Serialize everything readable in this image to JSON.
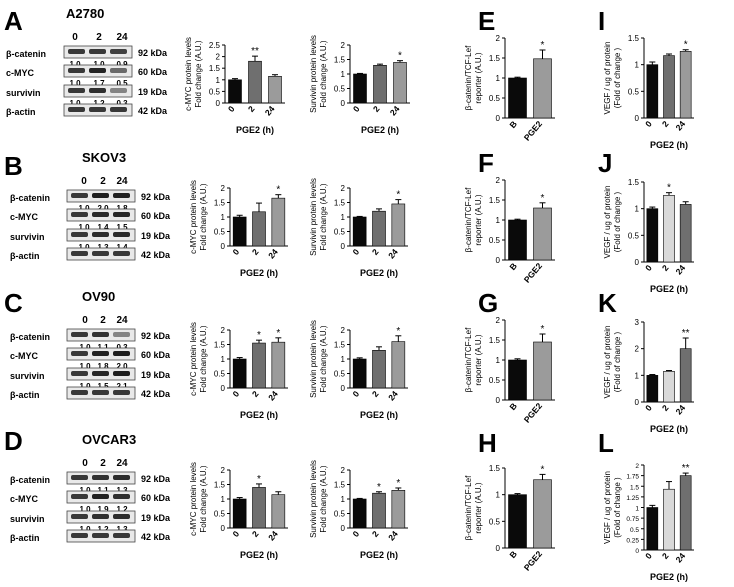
{
  "colors": {
    "black": "#0a0a0a",
    "dark_gray": "#6f6f6f",
    "gray": "#9b9b9b",
    "light_gray": "#d9d9d9"
  },
  "panel_letters": [
    "A",
    "B",
    "C",
    "D",
    "E",
    "F",
    "G",
    "H",
    "I",
    "J",
    "K",
    "L"
  ],
  "blots": [
    {
      "cell_line": "A2780",
      "lanes": [
        "0",
        "2",
        "24"
      ],
      "rows": [
        {
          "name": "β-catenin",
          "kda": "92 kDa",
          "values": [
            "1.0",
            "1.0",
            "0.9"
          ]
        },
        {
          "name": "c-MYC",
          "kda": "60 kDa",
          "values": [
            "1.0",
            "1.7",
            "0.5"
          ]
        },
        {
          "name": "survivin",
          "kda": "19 kDa",
          "values": [
            "1.0",
            "1.2",
            "0.3"
          ]
        },
        {
          "name": "β-actin",
          "kda": "42 kDa",
          "values": []
        }
      ]
    },
    {
      "cell_line": "SKOV3",
      "lanes": [
        "0",
        "2",
        "24"
      ],
      "rows": [
        {
          "name": "β-catenin",
          "kda": "92 kDa",
          "values": [
            "1.0",
            "2.0",
            "1.8"
          ]
        },
        {
          "name": "c-MYC",
          "kda": "60 kDa",
          "values": [
            "1.0",
            "1.4",
            "1.5"
          ]
        },
        {
          "name": "survivin",
          "kda": "19 kDa",
          "values": [
            "1.0",
            "1.3",
            "1.4"
          ]
        },
        {
          "name": "β-actin",
          "kda": "42 kDa",
          "values": []
        }
      ]
    },
    {
      "cell_line": "OV90",
      "lanes": [
        "0",
        "2",
        "24"
      ],
      "rows": [
        {
          "name": "β-catenin",
          "kda": "92 kDa",
          "values": [
            "1.0",
            "1.1",
            "0.3"
          ]
        },
        {
          "name": "c-MYC",
          "kda": "60 kDa",
          "values": [
            "1.0",
            "1.8",
            "2.0"
          ]
        },
        {
          "name": "survivin",
          "kda": "19 kDa",
          "values": [
            "1.0",
            "1.5",
            "2.1"
          ]
        },
        {
          "name": "β-actin",
          "kda": "42 kDa",
          "values": []
        }
      ]
    },
    {
      "cell_line": "OVCAR3",
      "lanes": [
        "0",
        "2",
        "24"
      ],
      "rows": [
        {
          "name": "β-catenin",
          "kda": "92 kDa",
          "values": [
            "1.0",
            "1.1",
            "1.3"
          ]
        },
        {
          "name": "c-MYC",
          "kda": "60 kDa",
          "values": [
            "1.0",
            "1.9",
            "1.2"
          ]
        },
        {
          "name": "survivin",
          "kda": "19 kDa",
          "values": [
            "1.0",
            "1.2",
            "1.3"
          ]
        },
        {
          "name": "β-actin",
          "kda": "42 kDa",
          "values": []
        }
      ]
    }
  ],
  "chart_data": [
    {
      "id": "A-cmyc",
      "type": "bar",
      "ylabel": [
        "c-MYC protein levels",
        "Fold change (A.U.)"
      ],
      "xlabel": "PGE2 (h)",
      "categories": [
        "0",
        "2",
        "24"
      ],
      "values": [
        1.0,
        1.8,
        1.15
      ],
      "errors": [
        0.05,
        0.22,
        0.07
      ],
      "ylim": [
        0,
        2.5
      ],
      "yticks": [
        0,
        0.5,
        1.0,
        1.5,
        2.0,
        2.5
      ],
      "sig": [
        "",
        "**",
        ""
      ],
      "colors": [
        "#0a0a0a",
        "#6f6f6f",
        "#9b9b9b"
      ]
    },
    {
      "id": "A-survivin",
      "type": "bar",
      "ylabel": [
        "Survivin protein levels",
        "Fold change (A.U.)"
      ],
      "xlabel": "PGE2 (h)",
      "categories": [
        "0",
        "2",
        "24"
      ],
      "values": [
        1.0,
        1.3,
        1.4
      ],
      "errors": [
        0.02,
        0.04,
        0.06
      ],
      "ylim": [
        0,
        2.0
      ],
      "yticks": [
        0,
        0.5,
        1.0,
        1.5,
        2.0
      ],
      "sig": [
        "",
        "",
        "*"
      ],
      "colors": [
        "#0a0a0a",
        "#6f6f6f",
        "#9b9b9b"
      ]
    },
    {
      "id": "B-cmyc",
      "type": "bar",
      "ylabel": [
        "c-MYC protein levels",
        "Fold change (A.U.)"
      ],
      "xlabel": "PGE2 (h)",
      "categories": [
        "0",
        "2",
        "24"
      ],
      "values": [
        1.0,
        1.18,
        1.65
      ],
      "errors": [
        0.06,
        0.3,
        0.12
      ],
      "ylim": [
        0,
        2.0
      ],
      "yticks": [
        0,
        0.5,
        1.0,
        1.5,
        2.0
      ],
      "sig": [
        "",
        "",
        "*"
      ],
      "colors": [
        "#0a0a0a",
        "#6f6f6f",
        "#9b9b9b"
      ]
    },
    {
      "id": "B-survivin",
      "type": "bar",
      "ylabel": [
        "Survivin protein levels",
        "Fold change (A.U.)"
      ],
      "xlabel": "PGE2 (h)",
      "categories": [
        "0",
        "2",
        "24"
      ],
      "values": [
        1.0,
        1.2,
        1.45
      ],
      "errors": [
        0.02,
        0.08,
        0.15
      ],
      "ylim": [
        0,
        2.0
      ],
      "yticks": [
        0,
        0.5,
        1.0,
        1.5,
        2.0
      ],
      "sig": [
        "",
        "",
        "*"
      ],
      "colors": [
        "#0a0a0a",
        "#6f6f6f",
        "#9b9b9b"
      ]
    },
    {
      "id": "C-cmyc",
      "type": "bar",
      "ylabel": [
        "c-MYC protein levels",
        "Fold change (A.U.)"
      ],
      "xlabel": "PGE2 (h)",
      "categories": [
        "0",
        "2",
        "24"
      ],
      "values": [
        1.0,
        1.55,
        1.58
      ],
      "errors": [
        0.05,
        0.1,
        0.15
      ],
      "ylim": [
        0,
        2.0
      ],
      "yticks": [
        0,
        0.5,
        1.0,
        1.5,
        2.0
      ],
      "sig": [
        "",
        "*",
        "*"
      ],
      "colors": [
        "#0a0a0a",
        "#6f6f6f",
        "#9b9b9b"
      ]
    },
    {
      "id": "C-survivin",
      "type": "bar",
      "ylabel": [
        "Survivin protein levels",
        "Fold change (A.U.)"
      ],
      "xlabel": "PGE2 (h)",
      "categories": [
        "0",
        "2",
        "24"
      ],
      "values": [
        1.0,
        1.3,
        1.6
      ],
      "errors": [
        0.04,
        0.12,
        0.2
      ],
      "ylim": [
        0,
        2.0
      ],
      "yticks": [
        0,
        0.5,
        1.0,
        1.5,
        2.0
      ],
      "sig": [
        "",
        "",
        "*"
      ],
      "colors": [
        "#0a0a0a",
        "#6f6f6f",
        "#9b9b9b"
      ]
    },
    {
      "id": "D-cmyc",
      "type": "bar",
      "ylabel": [
        "c-MYC protein levels",
        "Fold change (A.U.)"
      ],
      "xlabel": "PGE2 (h)",
      "categories": [
        "0",
        "2",
        "24"
      ],
      "values": [
        1.0,
        1.4,
        1.15
      ],
      "errors": [
        0.05,
        0.12,
        0.1
      ],
      "ylim": [
        0,
        2.0
      ],
      "yticks": [
        0,
        0.5,
        1.0,
        1.5,
        2.0
      ],
      "sig": [
        "",
        "*",
        ""
      ],
      "colors": [
        "#0a0a0a",
        "#6f6f6f",
        "#9b9b9b"
      ]
    },
    {
      "id": "D-survivin",
      "type": "bar",
      "ylabel": [
        "Survivin protein levels",
        "Fold change (A.U.)"
      ],
      "xlabel": "PGE2 (h)",
      "categories": [
        "0",
        "2",
        "24"
      ],
      "values": [
        1.0,
        1.2,
        1.3
      ],
      "errors": [
        0.02,
        0.05,
        0.08
      ],
      "ylim": [
        0,
        2.0
      ],
      "yticks": [
        0,
        0.5,
        1.0,
        1.5,
        2.0
      ],
      "sig": [
        "",
        "*",
        "*"
      ],
      "colors": [
        "#0a0a0a",
        "#6f6f6f",
        "#9b9b9b"
      ]
    },
    {
      "id": "E",
      "type": "bar",
      "ylabel": [
        "β-catenin/TCF-Lef",
        "reporter (A.U.)"
      ],
      "xlabel": "",
      "categories": [
        "B",
        "PGE2"
      ],
      "values": [
        1.0,
        1.48
      ],
      "errors": [
        0.02,
        0.22
      ],
      "ylim": [
        0,
        2.0
      ],
      "yticks": [
        0,
        0.5,
        1.0,
        1.5,
        2.0
      ],
      "sig": [
        "",
        "*"
      ],
      "colors": [
        "#0a0a0a",
        "#9b9b9b"
      ]
    },
    {
      "id": "F",
      "type": "bar",
      "ylabel": [
        "β-catenin/TCF-Lef",
        "reporter (A.U.)"
      ],
      "xlabel": "",
      "categories": [
        "B",
        "PGE2"
      ],
      "values": [
        1.0,
        1.3
      ],
      "errors": [
        0.02,
        0.13
      ],
      "ylim": [
        0,
        2.0
      ],
      "yticks": [
        0,
        0.5,
        1.0,
        1.5,
        2.0
      ],
      "sig": [
        "",
        "*"
      ],
      "colors": [
        "#0a0a0a",
        "#9b9b9b"
      ]
    },
    {
      "id": "G",
      "type": "bar",
      "ylabel": [
        "β-catenin/TCF-Lef",
        "reporter (A.U.)"
      ],
      "xlabel": "",
      "categories": [
        "B",
        "PGE2"
      ],
      "values": [
        1.0,
        1.45
      ],
      "errors": [
        0.03,
        0.2
      ],
      "ylim": [
        0,
        2.0
      ],
      "yticks": [
        0,
        0.5,
        1.0,
        1.5,
        2.0
      ],
      "sig": [
        "",
        "*"
      ],
      "colors": [
        "#0a0a0a",
        "#9b9b9b"
      ]
    },
    {
      "id": "H",
      "type": "bar",
      "ylabel": [
        "β-catenin/TCF-Lef",
        "reporter (A.U.)"
      ],
      "xlabel": "",
      "categories": [
        "B",
        "PGE2"
      ],
      "values": [
        1.0,
        1.28
      ],
      "errors": [
        0.02,
        0.1
      ],
      "ylim": [
        0,
        1.5
      ],
      "yticks": [
        0,
        0.5,
        1.0,
        1.5
      ],
      "sig": [
        "",
        "*"
      ],
      "colors": [
        "#0a0a0a",
        "#9b9b9b"
      ]
    },
    {
      "id": "I",
      "type": "bar",
      "ylabel": [
        "VEGF / ug of protein",
        "(Fold of change )"
      ],
      "xlabel": "PGE2 (h)",
      "categories": [
        "0",
        "2",
        "24"
      ],
      "values": [
        1.0,
        1.17,
        1.25
      ],
      "errors": [
        0.05,
        0.03,
        0.03
      ],
      "ylim": [
        0,
        1.5
      ],
      "yticks": [
        0,
        0.5,
        1.0,
        1.5
      ],
      "sig": [
        "",
        "",
        "*"
      ],
      "colors": [
        "#0a0a0a",
        "#6f6f6f",
        "#9b9b9b"
      ]
    },
    {
      "id": "J",
      "type": "bar",
      "ylabel": [
        "VEGF / ug of protein",
        "(Fold of change )"
      ],
      "xlabel": "PGE2 (h)",
      "categories": [
        "0",
        "2",
        "24"
      ],
      "values": [
        1.0,
        1.25,
        1.08
      ],
      "errors": [
        0.03,
        0.05,
        0.05
      ],
      "ylim": [
        0,
        1.5
      ],
      "yticks": [
        0,
        0.5,
        1.0,
        1.5
      ],
      "sig": [
        "",
        "*",
        ""
      ],
      "colors": [
        "#0a0a0a",
        "#d9d9d9",
        "#6f6f6f"
      ]
    },
    {
      "id": "K",
      "type": "bar",
      "ylabel": [
        "VEGF / ug of protein",
        "(Fold of change )"
      ],
      "xlabel": "PGE2 (h)",
      "categories": [
        "0",
        "2",
        "24"
      ],
      "values": [
        1.0,
        1.15,
        2.0
      ],
      "errors": [
        0.03,
        0.03,
        0.4
      ],
      "ylim": [
        0,
        3
      ],
      "yticks": [
        0,
        1,
        2,
        3
      ],
      "sig": [
        "",
        "",
        "**"
      ],
      "colors": [
        "#0a0a0a",
        "#d9d9d9",
        "#6f6f6f"
      ]
    },
    {
      "id": "L",
      "type": "bar",
      "ylabel": [
        "VEGF / ug of protein",
        "(Fold of change )"
      ],
      "xlabel": "PGE2 (h)",
      "categories": [
        "0",
        "2",
        "24"
      ],
      "values": [
        1.0,
        1.43,
        1.75
      ],
      "errors": [
        0.05,
        0.18,
        0.06
      ],
      "ylim": [
        0,
        2.0
      ],
      "yticks": [
        0,
        0.25,
        0.5,
        0.75,
        1.0,
        1.25,
        1.5,
        1.75,
        2.0
      ],
      "sig": [
        "",
        "",
        "**"
      ],
      "colors": [
        "#0a0a0a",
        "#d9d9d9",
        "#6f6f6f"
      ]
    }
  ]
}
